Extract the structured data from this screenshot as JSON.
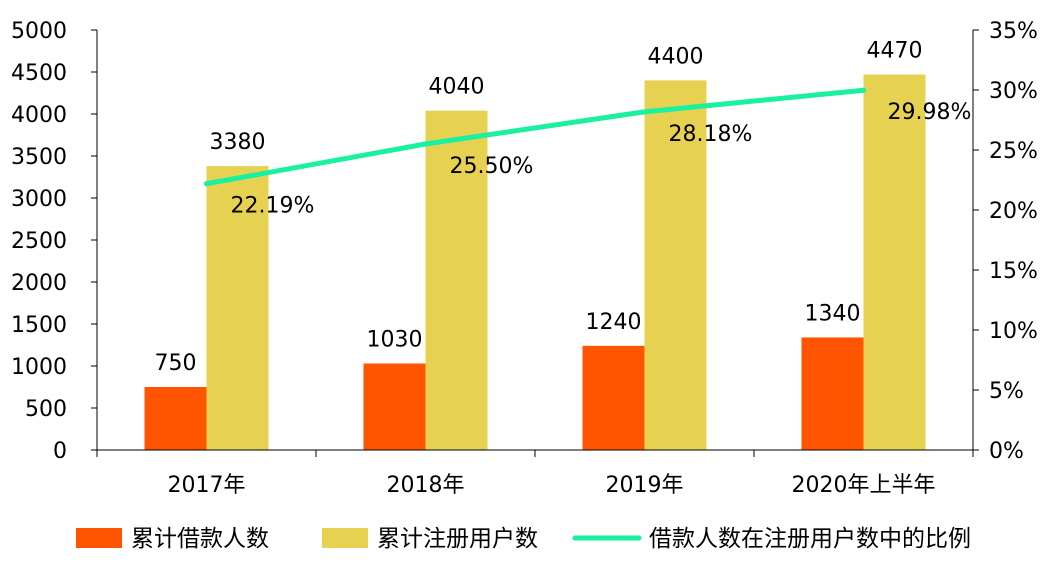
{
  "chart_data": {
    "type": "bar",
    "categories": [
      "2017年",
      "2018年",
      "2019年",
      "2020年上半年"
    ],
    "series": [
      {
        "name": "累计借款人数",
        "kind": "bar",
        "axis": "left",
        "color": "#FF5500",
        "values": [
          750,
          1030,
          1240,
          1340
        ],
        "labels": [
          "750",
          "1030",
          "1240",
          "1340"
        ]
      },
      {
        "name": "累计注册用户数",
        "kind": "bar",
        "axis": "left",
        "color": "#E6D250",
        "values": [
          3380,
          4040,
          4400,
          4470
        ],
        "labels": [
          "3380",
          "4040",
          "4400",
          "4470"
        ]
      },
      {
        "name": "借款人数在注册用户数中的比例",
        "kind": "line",
        "axis": "right",
        "color": "#19F0A0",
        "values": [
          22.19,
          25.5,
          28.18,
          29.98
        ],
        "labels": [
          "22.19%",
          "25.50%",
          "28.18%",
          "29.98%"
        ]
      }
    ],
    "y_left": {
      "min": 0,
      "max": 5000,
      "step": 500,
      "ticks": [
        "0",
        "500",
        "1000",
        "1500",
        "2000",
        "2500",
        "3000",
        "3500",
        "4000",
        "4500",
        "5000"
      ]
    },
    "y_right": {
      "min": 0,
      "max": 35,
      "step": 5,
      "ticks": [
        "0%",
        "5%",
        "10%",
        "15%",
        "20%",
        "25%",
        "30%",
        "35%"
      ]
    },
    "grid": false,
    "legend_position": "bottom"
  }
}
